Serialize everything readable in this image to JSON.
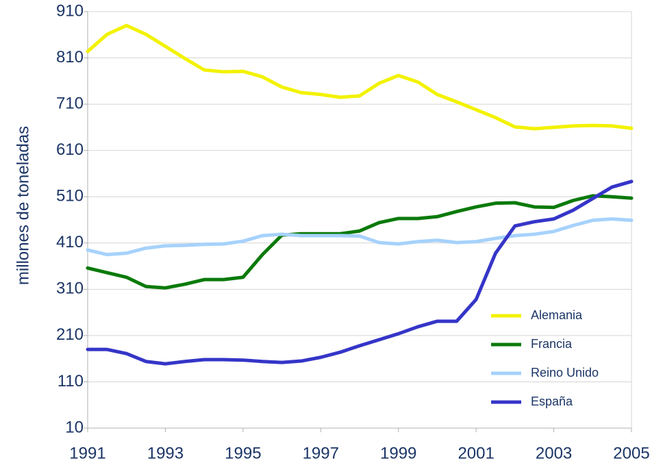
{
  "chart_data": {
    "type": "line",
    "y_label": "millones de toneladas",
    "x": [
      1991,
      1991.5,
      1992,
      1992.5,
      1993,
      1993.5,
      1994,
      1994.5,
      1995,
      1995.5,
      1996,
      1996.5,
      1997,
      1997.5,
      1998,
      1998.5,
      1999,
      1999.5,
      2000,
      2000.5,
      2001,
      2001.5,
      2002,
      2002.5,
      2003,
      2003.5,
      2004,
      2004.5,
      2005
    ],
    "series": [
      {
        "name": "Alemania",
        "color": "#f2f200",
        "values": [
          824,
          861,
          880,
          861,
          835,
          809,
          784,
          780,
          781,
          769,
          747,
          735,
          731,
          725,
          728,
          755,
          772,
          758,
          731,
          715,
          698,
          681,
          661,
          657,
          660,
          663,
          664,
          663,
          658
        ]
      },
      {
        "name": "Francia",
        "color": "#0b7a0b",
        "values": [
          356,
          346,
          336,
          316,
          313,
          321,
          331,
          331,
          336,
          385,
          427,
          430,
          430,
          430,
          436,
          454,
          463,
          463,
          467,
          478,
          488,
          496,
          497,
          488,
          487,
          502,
          512,
          510,
          507
        ]
      },
      {
        "name": "Reino Unido",
        "color": "#a6d2fc",
        "values": [
          395,
          385,
          388,
          399,
          404,
          405,
          407,
          408,
          414,
          426,
          429,
          426,
          426,
          426,
          425,
          411,
          408,
          413,
          416,
          411,
          413,
          420,
          426,
          429,
          435,
          448,
          459,
          462,
          459
        ]
      },
      {
        "name": "España",
        "color": "#3535c8",
        "values": [
          180,
          180,
          171,
          154,
          149,
          154,
          158,
          158,
          157,
          154,
          152,
          155,
          163,
          174,
          188,
          201,
          214,
          229,
          241,
          241,
          288,
          388,
          447,
          456,
          462,
          481,
          506,
          531,
          543
        ]
      }
    ],
    "xlim": [
      1991,
      2005
    ],
    "xticks": [
      1991,
      1993,
      1995,
      1997,
      1999,
      2001,
      2003,
      2005
    ],
    "ylim": [
      10,
      910
    ],
    "yticks": [
      10,
      110,
      210,
      310,
      410,
      510,
      610,
      710,
      810,
      910
    ],
    "grid": true,
    "legend": "lower right"
  }
}
